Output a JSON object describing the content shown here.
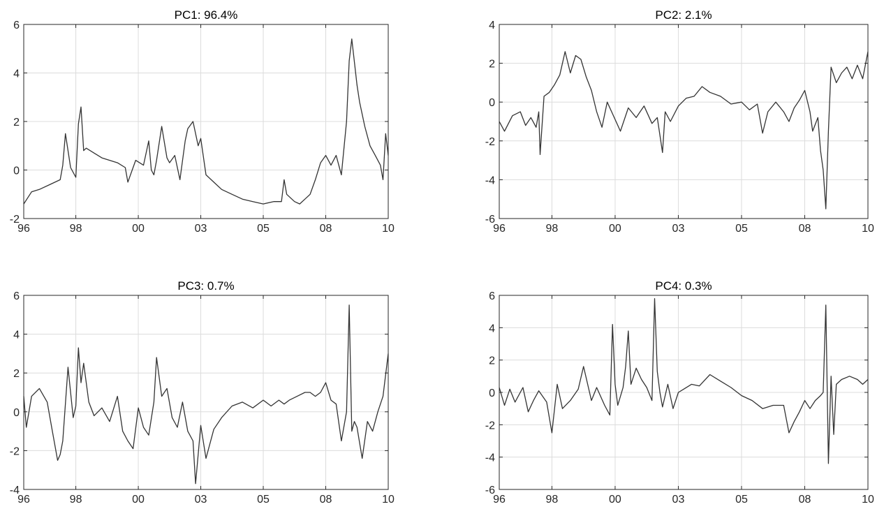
{
  "colors": {
    "series": "#333333",
    "grid": "#dcdcdc",
    "axes": "#262626"
  },
  "chart_data": [
    {
      "type": "line",
      "title": "PC1: 96.4%",
      "xlabel": "",
      "ylabel": "",
      "xlim": [
        1996.0,
        2010.0
      ],
      "ylim": [
        -2,
        6
      ],
      "xticks": [
        1996.0,
        1998.0,
        2000.4,
        2002.8,
        2005.2,
        2007.6,
        2010.0
      ],
      "xtick_labels": [
        "96",
        "98",
        "00",
        "03",
        "05",
        "08",
        "10"
      ],
      "yticks": [
        -2,
        0,
        2,
        4,
        6
      ],
      "ytick_labels": [
        "-2",
        "0",
        "2",
        "4",
        "6"
      ],
      "grid": true,
      "series": [
        {
          "x": [
            1996.0,
            1996.3,
            1996.6,
            1997.0,
            1997.4,
            1997.5,
            1997.6,
            1997.8,
            1998.0,
            1998.1,
            1998.2,
            1998.3,
            1998.4,
            1998.7,
            1999.0,
            1999.3,
            1999.6,
            1999.9,
            2000.0,
            2000.3,
            2000.6,
            2000.8,
            2000.9,
            2001.0,
            2001.1,
            2001.3,
            2001.5,
            2001.6,
            2001.8,
            2002.0,
            2002.2,
            2002.3,
            2002.5,
            2002.7,
            2002.8,
            2003.0,
            2003.3,
            2003.6,
            2004.0,
            2004.4,
            2004.8,
            2005.2,
            2005.6,
            2005.9,
            2006.0,
            2006.1,
            2006.4,
            2006.6,
            2006.8,
            2007.0,
            2007.2,
            2007.4,
            2007.6,
            2007.8,
            2008.0,
            2008.2,
            2008.4,
            2008.5,
            2008.6,
            2008.8,
            2008.9,
            2009.1,
            2009.3,
            2009.5,
            2009.7,
            2009.8,
            2009.9,
            2010.0
          ],
          "y": [
            -1.4,
            -0.9,
            -0.8,
            -0.6,
            -0.4,
            0.2,
            1.5,
            0.1,
            -0.3,
            1.9,
            2.6,
            0.8,
            0.9,
            0.7,
            0.5,
            0.4,
            0.3,
            0.1,
            -0.5,
            0.4,
            0.2,
            1.2,
            0.0,
            -0.2,
            0.4,
            1.8,
            0.5,
            0.3,
            0.6,
            -0.4,
            1.2,
            1.7,
            2.0,
            1.0,
            1.3,
            -0.2,
            -0.5,
            -0.8,
            -1.0,
            -1.2,
            -1.3,
            -1.4,
            -1.3,
            -1.3,
            -0.4,
            -1.0,
            -1.3,
            -1.4,
            -1.2,
            -1.0,
            -0.4,
            0.3,
            0.6,
            0.2,
            0.6,
            -0.2,
            2.0,
            4.5,
            5.4,
            3.5,
            2.8,
            1.8,
            1.0,
            0.6,
            0.2,
            -0.4,
            1.5,
            0.6
          ]
        }
      ]
    },
    {
      "type": "line",
      "title": "PC2: 2.1%",
      "xlabel": "",
      "ylabel": "",
      "xlim": [
        1996.0,
        2010.0
      ],
      "ylim": [
        -6,
        4
      ],
      "xticks": [
        1996.0,
        1998.0,
        2000.4,
        2002.8,
        2005.2,
        2007.6,
        2010.0
      ],
      "xtick_labels": [
        "96",
        "98",
        "00",
        "03",
        "05",
        "08",
        "10"
      ],
      "yticks": [
        -6,
        -4,
        -2,
        0,
        2,
        4
      ],
      "ytick_labels": [
        "-6",
        "-4",
        "-2",
        "0",
        "2",
        "4"
      ],
      "grid": true,
      "series": [
        {
          "x": [
            1996.0,
            1996.2,
            1996.5,
            1996.8,
            1997.0,
            1997.2,
            1997.4,
            1997.5,
            1997.55,
            1997.7,
            1997.9,
            1998.1,
            1998.3,
            1998.5,
            1998.7,
            1998.9,
            1999.1,
            1999.3,
            1999.5,
            1999.7,
            1999.9,
            2000.1,
            2000.3,
            2000.6,
            2000.9,
            2001.2,
            2001.5,
            2001.8,
            2002.0,
            2002.2,
            2002.3,
            2002.5,
            2002.8,
            2003.1,
            2003.4,
            2003.7,
            2004.0,
            2004.4,
            2004.8,
            2005.2,
            2005.5,
            2005.8,
            2006.0,
            2006.2,
            2006.5,
            2006.8,
            2007.0,
            2007.2,
            2007.4,
            2007.6,
            2007.8,
            2007.9,
            2008.1,
            2008.2,
            2008.3,
            2008.4,
            2008.5,
            2008.6,
            2008.8,
            2009.0,
            2009.2,
            2009.4,
            2009.6,
            2009.8,
            2010.0
          ],
          "y": [
            -1.0,
            -1.5,
            -0.7,
            -0.5,
            -1.2,
            -0.8,
            -1.3,
            -0.5,
            -2.7,
            0.3,
            0.5,
            0.9,
            1.4,
            2.6,
            1.5,
            2.4,
            2.2,
            1.3,
            0.6,
            -0.5,
            -1.3,
            0.0,
            -0.6,
            -1.5,
            -0.3,
            -0.8,
            -0.2,
            -1.1,
            -0.8,
            -2.6,
            -0.5,
            -1.0,
            -0.2,
            0.2,
            0.3,
            0.8,
            0.5,
            0.3,
            -0.1,
            0.0,
            -0.4,
            -0.1,
            -1.6,
            -0.5,
            0.0,
            -0.5,
            -1.0,
            -0.3,
            0.1,
            0.6,
            -0.5,
            -1.5,
            -0.8,
            -2.5,
            -3.5,
            -5.5,
            -1.5,
            1.8,
            1.0,
            1.5,
            1.8,
            1.2,
            1.9,
            1.2,
            2.6
          ]
        }
      ]
    },
    {
      "type": "line",
      "title": "PC3: 0.7%",
      "xlabel": "",
      "ylabel": "",
      "xlim": [
        1996.0,
        2010.0
      ],
      "ylim": [
        -4,
        6
      ],
      "xticks": [
        1996.0,
        1998.0,
        2000.4,
        2002.8,
        2005.2,
        2007.6,
        2010.0
      ],
      "xtick_labels": [
        "96",
        "98",
        "00",
        "03",
        "05",
        "08",
        "10"
      ],
      "yticks": [
        -4,
        -2,
        0,
        2,
        4,
        6
      ],
      "ytick_labels": [
        "-4",
        "-2",
        "0",
        "2",
        "4",
        "6"
      ],
      "grid": true,
      "series": [
        {
          "x": [
            1996.0,
            1996.1,
            1996.3,
            1996.6,
            1996.9,
            1997.1,
            1997.3,
            1997.4,
            1997.5,
            1997.7,
            1997.9,
            1998.0,
            1998.1,
            1998.2,
            1998.3,
            1998.5,
            1998.7,
            1999.0,
            1999.3,
            1999.6,
            1999.8,
            2000.0,
            2000.2,
            2000.4,
            2000.6,
            2000.8,
            2001.0,
            2001.1,
            2001.3,
            2001.5,
            2001.7,
            2001.9,
            2002.1,
            2002.3,
            2002.5,
            2002.6,
            2002.8,
            2003.0,
            2003.3,
            2003.6,
            2004.0,
            2004.4,
            2004.8,
            2005.2,
            2005.5,
            2005.8,
            2006.0,
            2006.2,
            2006.5,
            2006.8,
            2007.0,
            2007.2,
            2007.4,
            2007.6,
            2007.8,
            2008.0,
            2008.2,
            2008.4,
            2008.5,
            2008.6,
            2008.7,
            2008.8,
            2009.0,
            2009.2,
            2009.4,
            2009.6,
            2009.8,
            2010.0
          ],
          "y": [
            0.8,
            -0.8,
            0.8,
            1.2,
            0.5,
            -1.0,
            -2.5,
            -2.2,
            -1.5,
            2.3,
            -0.3,
            0.3,
            3.3,
            1.5,
            2.5,
            0.5,
            -0.2,
            0.2,
            -0.5,
            0.8,
            -1.0,
            -1.5,
            -1.9,
            0.2,
            -0.8,
            -1.2,
            0.5,
            2.8,
            0.8,
            1.2,
            -0.3,
            -0.8,
            0.5,
            -1.0,
            -1.5,
            -3.7,
            -0.7,
            -2.4,
            -0.9,
            -0.3,
            0.3,
            0.5,
            0.2,
            0.6,
            0.3,
            0.6,
            0.4,
            0.6,
            0.8,
            1.0,
            1.0,
            0.8,
            1.0,
            1.5,
            0.6,
            0.4,
            -1.5,
            0.0,
            5.5,
            -1.0,
            -0.5,
            -0.8,
            -2.4,
            -0.5,
            -1.0,
            0.0,
            0.8,
            3.0
          ]
        }
      ]
    },
    {
      "type": "line",
      "title": "PC4: 0.3%",
      "xlabel": "",
      "ylabel": "",
      "xlim": [
        1996.0,
        2010.0
      ],
      "ylim": [
        -6,
        6
      ],
      "xticks": [
        1996.0,
        1998.0,
        2000.4,
        2002.8,
        2005.2,
        2007.6,
        2010.0
      ],
      "xtick_labels": [
        "96",
        "98",
        "00",
        "03",
        "05",
        "08",
        "10"
      ],
      "yticks": [
        -6,
        -4,
        -2,
        0,
        2,
        4,
        6
      ],
      "ytick_labels": [
        "-6",
        "-4",
        "-2",
        "0",
        "2",
        "4",
        "6"
      ],
      "grid": true,
      "series": [
        {
          "x": [
            1996.0,
            1996.2,
            1996.4,
            1996.6,
            1996.9,
            1997.1,
            1997.3,
            1997.5,
            1997.8,
            1998.0,
            1998.2,
            1998.4,
            1998.7,
            1999.0,
            1999.2,
            1999.5,
            1999.7,
            2000.0,
            2000.2,
            2000.3,
            2000.4,
            2000.5,
            2000.7,
            2000.8,
            2000.9,
            2001.0,
            2001.2,
            2001.4,
            2001.6,
            2001.8,
            2001.9,
            2002.0,
            2002.1,
            2002.2,
            2002.4,
            2002.6,
            2002.8,
            2003.0,
            2003.3,
            2003.6,
            2004.0,
            2004.4,
            2004.8,
            2005.2,
            2005.6,
            2006.0,
            2006.4,
            2006.8,
            2007.0,
            2007.2,
            2007.4,
            2007.6,
            2007.8,
            2008.0,
            2008.2,
            2008.3,
            2008.4,
            2008.5,
            2008.6,
            2008.7,
            2008.8,
            2009.0,
            2009.3,
            2009.6,
            2009.8,
            2010.0
          ],
          "y": [
            0.3,
            -0.8,
            0.2,
            -0.6,
            0.3,
            -1.2,
            -0.5,
            0.1,
            -0.6,
            -2.5,
            0.5,
            -1.0,
            -0.5,
            0.2,
            1.6,
            -0.5,
            0.3,
            -0.8,
            -1.4,
            4.2,
            0.5,
            -0.8,
            0.3,
            1.6,
            3.8,
            0.5,
            1.5,
            0.8,
            0.3,
            -0.5,
            5.8,
            1.3,
            0.0,
            -0.9,
            0.5,
            -1.0,
            0.0,
            0.2,
            0.5,
            0.4,
            1.1,
            0.7,
            0.3,
            -0.2,
            -0.5,
            -1.0,
            -0.8,
            -0.8,
            -2.5,
            -1.8,
            -1.2,
            -0.5,
            -1.0,
            -0.5,
            -0.2,
            0.0,
            5.4,
            -4.4,
            1.0,
            -2.6,
            0.5,
            0.8,
            1.0,
            0.8,
            0.5,
            0.8
          ]
        }
      ]
    }
  ]
}
